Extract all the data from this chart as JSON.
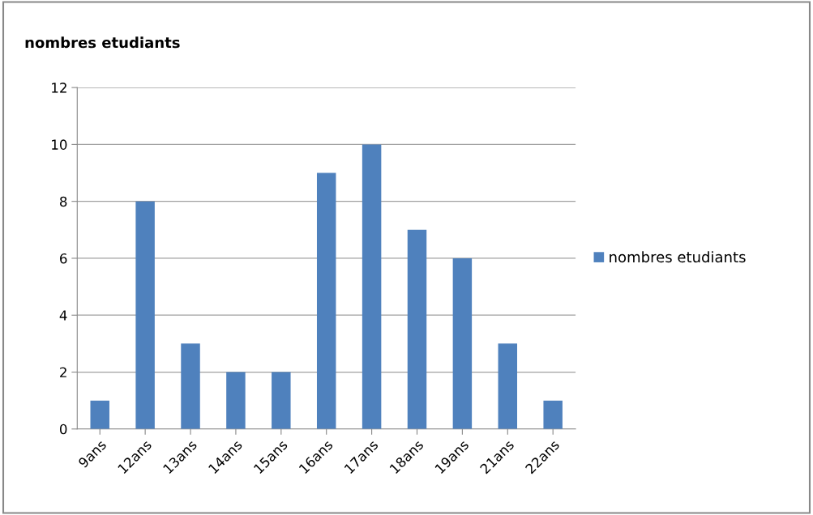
{
  "chart_data": {
    "type": "bar",
    "title": "nombres etudiants",
    "categories": [
      "9ans",
      "12ans",
      "13ans",
      "14ans",
      "15ans",
      "16ans",
      "17ans",
      "18ans",
      "19ans",
      "21ans",
      "22ans"
    ],
    "series": [
      {
        "name": "nombres etudiants",
        "color": "#4f81bd",
        "values": [
          1,
          8,
          3,
          2,
          2,
          9,
          10,
          7,
          6,
          3,
          1
        ]
      }
    ],
    "ylim": [
      0,
      12
    ],
    "yticks": [
      0,
      2,
      4,
      6,
      8,
      10,
      12
    ],
    "grid": "y",
    "legend": "right"
  }
}
